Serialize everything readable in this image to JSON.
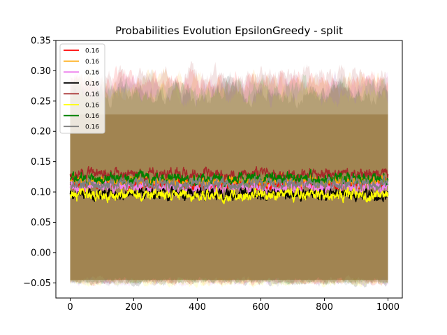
{
  "chart_data": {
    "type": "line",
    "title": "Probabilities Evolution EpsilonGreedy  - split",
    "xlabel": "",
    "ylabel": "",
    "xlim": [
      -45,
      1045
    ],
    "ylim": [
      -0.075,
      0.35
    ],
    "xticks": [
      0,
      200,
      400,
      600,
      800,
      1000
    ],
    "xtick_labels": [
      "0",
      "200",
      "400",
      "600",
      "800",
      "1000"
    ],
    "yticks": [
      -0.05,
      0.0,
      0.05,
      0.1,
      0.15,
      0.2,
      0.25,
      0.3,
      0.35
    ],
    "ytick_labels": [
      "−0.05",
      "0.00",
      "0.05",
      "0.10",
      "0.15",
      "0.20",
      "0.25",
      "0.30",
      "0.35"
    ],
    "grid": false,
    "legend_position": "top-left",
    "x_range": [
      0,
      1000
    ],
    "series": [
      {
        "name": "0.16",
        "color": "#ff0000",
        "mean": 0.113,
        "band_lower": -0.048,
        "band_upper": 0.285
      },
      {
        "name": "0.16",
        "color": "#ffa500",
        "mean": 0.118,
        "band_lower": -0.048,
        "band_upper": 0.28
      },
      {
        "name": "0.16",
        "color": "#ee82ee",
        "mean": 0.107,
        "band_lower": -0.05,
        "band_upper": 0.275
      },
      {
        "name": "0.16",
        "color": "#000000",
        "mean": 0.096,
        "band_lower": -0.05,
        "band_upper": 0.265
      },
      {
        "name": "0.16",
        "color": "#a52a2a",
        "mean": 0.129,
        "band_lower": -0.046,
        "band_upper": 0.29
      },
      {
        "name": "0.16",
        "color": "#ffff00",
        "mean": 0.095,
        "band_lower": -0.052,
        "band_upper": 0.26
      },
      {
        "name": "0.16",
        "color": "#008000",
        "mean": 0.122,
        "band_lower": -0.047,
        "band_upper": 0.27
      },
      {
        "name": "0.16",
        "color": "#808080",
        "mean": 0.114,
        "band_lower": -0.049,
        "band_upper": 0.275
      }
    ]
  }
}
